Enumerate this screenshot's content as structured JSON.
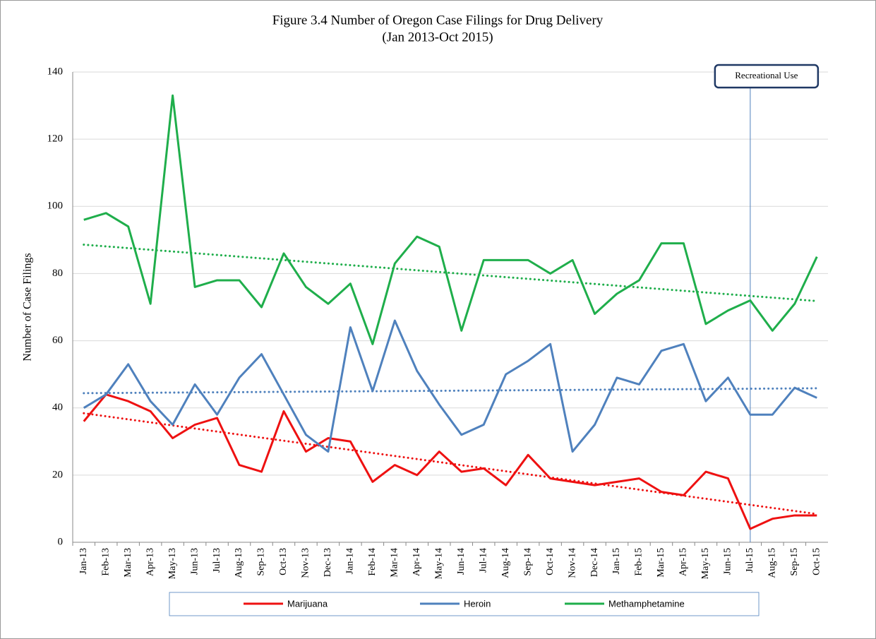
{
  "chart_data": {
    "type": "line",
    "title": "Figure 3.4 Number of Oregon Case Filings for Drug Delivery",
    "subtitle": "(Jan 2013-Oct 2015)",
    "y_label": "Number of Case Filings",
    "categories": [
      "Jan-13",
      "Feb-13",
      "Mar-13",
      "Apr-13",
      "May-13",
      "Jun-13",
      "Jul-13",
      "Aug-13",
      "Sep-13",
      "Oct-13",
      "Nov-13",
      "Dec-13",
      "Jan-14",
      "Feb-14",
      "Mar-14",
      "Apr-14",
      "May-14",
      "Jun-14",
      "Jul-14",
      "Aug-14",
      "Sep-14",
      "Oct-14",
      "Nov-14",
      "Dec-14",
      "Jan-15",
      "Feb-15",
      "Mar-15",
      "Apr-15",
      "May-15",
      "Jun-15",
      "Jul-15",
      "Aug-15",
      "Sep-15",
      "Oct-15"
    ],
    "series": [
      {
        "name": "Marijuana",
        "color": "#ee1111",
        "values": [
          36,
          44,
          42,
          39,
          31,
          35,
          37,
          23,
          21,
          39,
          27,
          31,
          30,
          18,
          23,
          20,
          27,
          21,
          22,
          17,
          26,
          19,
          18,
          17,
          18,
          19,
          15,
          14,
          21,
          19,
          4,
          7,
          8,
          8
        ]
      },
      {
        "name": "Heroin",
        "color": "#4f81bd",
        "values": [
          40,
          44,
          53,
          42,
          35,
          47,
          38,
          49,
          56,
          44,
          32,
          27,
          64,
          45,
          66,
          51,
          41,
          32,
          35,
          50,
          54,
          59,
          27,
          35,
          49,
          47,
          57,
          59,
          42,
          49,
          38,
          38,
          46,
          43
        ]
      },
      {
        "name": "Methamphetamine",
        "color": "#1fae4b",
        "values": [
          96,
          98,
          94,
          71,
          133,
          76,
          78,
          78,
          70,
          86,
          76,
          71,
          77,
          59,
          83,
          91,
          88,
          63,
          84,
          84,
          84,
          80,
          84,
          68,
          74,
          78,
          89,
          89,
          65,
          69,
          72,
          63,
          71,
          85
        ]
      }
    ],
    "trendline": true,
    "annotation": {
      "text": "Recreational Use",
      "category": "Jul-15"
    },
    "ylim": [
      0,
      140
    ],
    "yticks": [
      0,
      20,
      40,
      60,
      80,
      100,
      120,
      140
    ],
    "grid": true,
    "legend": "bottom"
  }
}
